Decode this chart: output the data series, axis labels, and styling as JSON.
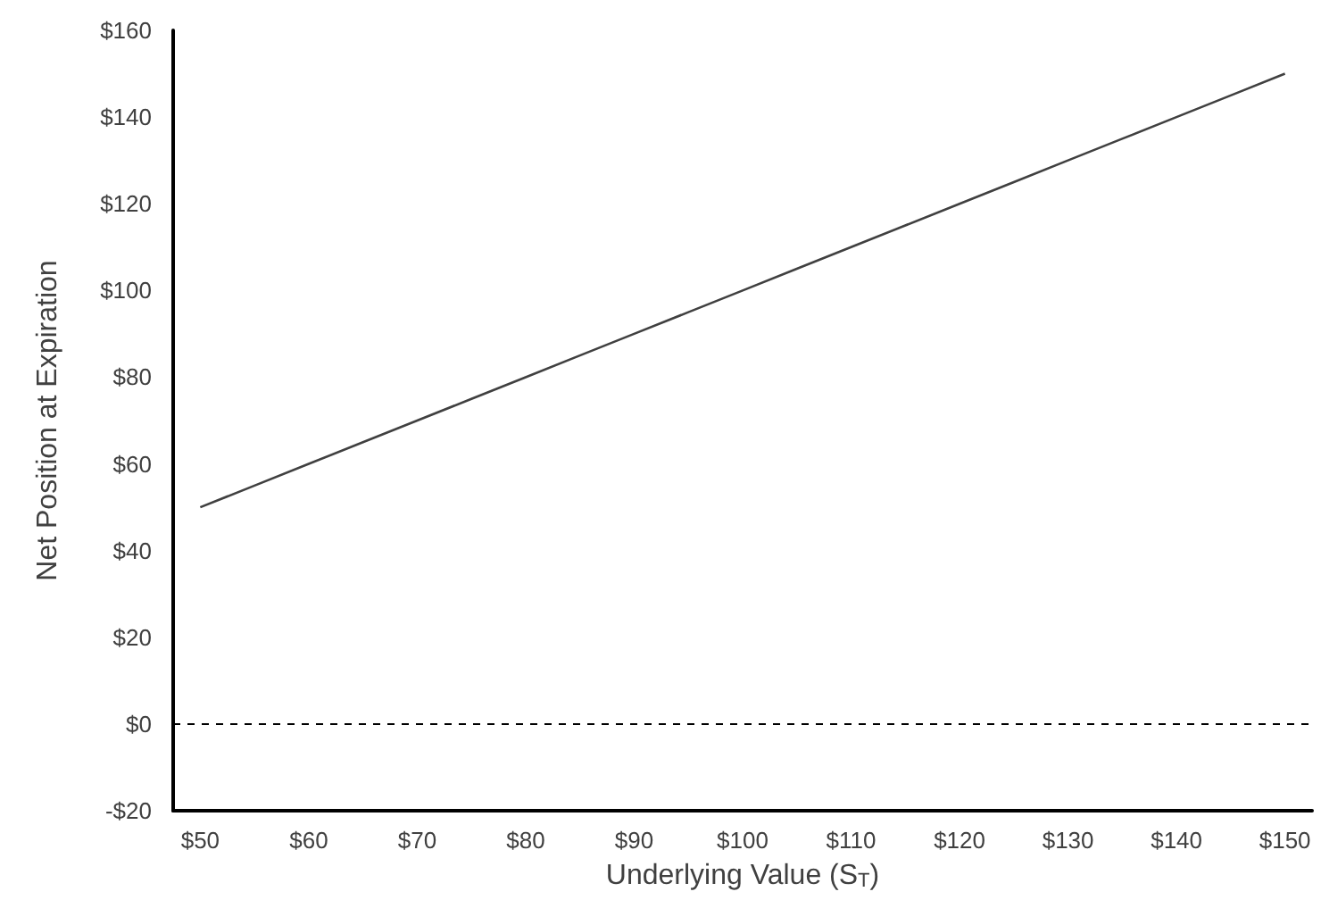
{
  "chart_data": {
    "type": "line",
    "xlabel": "Underlying Value (S$_{T}$)",
    "ylabel": "Net Position at Expiration",
    "x": [
      50,
      55,
      60,
      65,
      70,
      75,
      80,
      85,
      90,
      95,
      100,
      105,
      110,
      115,
      120,
      125,
      130,
      135,
      140,
      145,
      150
    ],
    "series": [
      {
        "color": "#404040",
        "values": [
          50,
          55,
          60,
          65,
          70,
          75,
          80,
          85,
          90,
          95,
          100,
          105,
          110,
          115,
          120,
          125,
          130,
          135,
          140,
          145,
          150
        ]
      }
    ],
    "xlim": [
      47.5,
      152.5
    ],
    "xticks": [
      {
        "value": 50,
        "label": "$50"
      },
      {
        "value": 60,
        "label": "$60"
      },
      {
        "value": 70,
        "label": "$70"
      },
      {
        "value": 80,
        "label": "$80"
      },
      {
        "value": 90,
        "label": "$90"
      },
      {
        "value": 100,
        "label": "$100"
      },
      {
        "value": 110,
        "label": "$110"
      },
      {
        "value": 120,
        "label": "$120"
      },
      {
        "value": 130,
        "label": "$130"
      },
      {
        "value": 140,
        "label": "$140"
      },
      {
        "value": 150,
        "label": "$150"
      }
    ],
    "ylim": [
      -20,
      160
    ],
    "yticks": [
      {
        "value": -20,
        "label": "-$20"
      },
      {
        "value": 0,
        "label": "$0"
      },
      {
        "value": 20,
        "label": "$20"
      },
      {
        "value": 40,
        "label": "$40"
      },
      {
        "value": 60,
        "label": "$60"
      },
      {
        "value": 80,
        "label": "$80"
      },
      {
        "value": 100,
        "label": "$100"
      },
      {
        "value": 120,
        "label": "$120"
      },
      {
        "value": 140,
        "label": "$140"
      },
      {
        "value": 160,
        "label": "$160"
      }
    ],
    "ref_lines": [
      {
        "axis": "y",
        "value": 0,
        "color": "#000000",
        "line_style": "dashed"
      }
    ],
    "grid": false,
    "marker": "none",
    "line_style": "solid"
  }
}
